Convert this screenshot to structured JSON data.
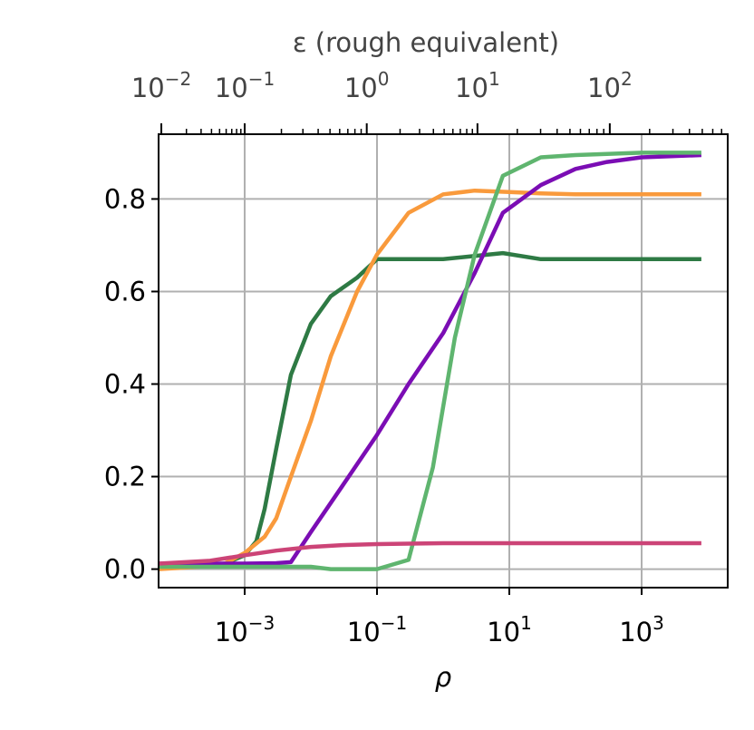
{
  "chart_data": {
    "type": "line",
    "xscale": "log",
    "xlabel": "ρ",
    "xlim": [
      5e-05,
      20000
    ],
    "ylim": [
      -0.04,
      0.94
    ],
    "grid": true,
    "x_ticks": [
      {
        "value": 0.001,
        "base": "10",
        "exp": "−3"
      },
      {
        "value": 0.1,
        "base": "10",
        "exp": "−1"
      },
      {
        "value": 10,
        "base": "10",
        "exp": "1"
      },
      {
        "value": 1000,
        "base": "10",
        "exp": "3"
      }
    ],
    "y_ticks": [
      {
        "value": 0.0,
        "label": "0.0"
      },
      {
        "value": 0.2,
        "label": "0.2"
      },
      {
        "value": 0.4,
        "label": "0.4"
      },
      {
        "value": 0.6,
        "label": "0.6"
      },
      {
        "value": 0.8,
        "label": "0.8"
      }
    ],
    "top_axis": {
      "label": "ε (rough equivalent)",
      "xscale": "log",
      "ticks": [
        {
          "base": "10",
          "exp": "−2",
          "rho": 5.5e-05
        },
        {
          "base": "10",
          "exp": "−1",
          "rho": 0.001
        },
        {
          "base": "10",
          "exp": "0",
          "rho": 0.07
        },
        {
          "base": "10",
          "exp": "1",
          "rho": 3.3
        },
        {
          "base": "10",
          "exp": "2",
          "rho": 330
        }
      ]
    },
    "series": [
      {
        "color": "#2e7a44",
        "x": [
          5e-05,
          0.0002,
          0.0005,
          0.001,
          0.0015,
          0.002,
          0.003,
          0.005,
          0.01,
          0.02,
          0.05,
          0.1,
          0.3,
          1,
          3,
          8,
          30,
          100,
          1000,
          8000
        ],
        "y": [
          0.005,
          0.007,
          0.012,
          0.03,
          0.06,
          0.13,
          0.26,
          0.42,
          0.53,
          0.59,
          0.63,
          0.67,
          0.67,
          0.67,
          0.677,
          0.683,
          0.67,
          0.67,
          0.67,
          0.67
        ]
      },
      {
        "color": "#f99a3c",
        "x": [
          5e-05,
          0.0002,
          0.0005,
          0.001,
          0.002,
          0.003,
          0.005,
          0.01,
          0.02,
          0.05,
          0.1,
          0.3,
          1,
          3,
          10,
          30,
          100,
          1000,
          8000
        ],
        "y": [
          0.0,
          0.005,
          0.012,
          0.035,
          0.07,
          0.11,
          0.2,
          0.32,
          0.46,
          0.6,
          0.68,
          0.77,
          0.81,
          0.818,
          0.815,
          0.812,
          0.81,
          0.81,
          0.81
        ]
      },
      {
        "color": "#7b0db4",
        "x": [
          5e-05,
          0.0002,
          0.0005,
          0.001,
          0.003,
          0.005,
          0.01,
          0.03,
          0.1,
          0.3,
          1,
          3,
          8,
          30,
          100,
          300,
          1000,
          8000
        ],
        "y": [
          0.012,
          0.012,
          0.012,
          0.012,
          0.013,
          0.015,
          0.08,
          0.18,
          0.29,
          0.4,
          0.51,
          0.64,
          0.77,
          0.83,
          0.865,
          0.88,
          0.89,
          0.895
        ]
      },
      {
        "color": "#5fb56f",
        "x": [
          5e-05,
          0.001,
          0.005,
          0.01,
          0.02,
          0.1,
          0.3,
          0.7,
          1.5,
          3,
          8,
          30,
          100,
          1000,
          8000
        ],
        "y": [
          0.005,
          0.005,
          0.005,
          0.005,
          0.0,
          0.0,
          0.02,
          0.22,
          0.5,
          0.68,
          0.85,
          0.89,
          0.895,
          0.9,
          0.9
        ]
      },
      {
        "color": "#cc4477",
        "x": [
          5e-05,
          0.0003,
          0.001,
          0.003,
          0.01,
          0.03,
          0.1,
          0.3,
          1,
          10,
          100,
          1000,
          8000
        ],
        "y": [
          0.012,
          0.018,
          0.03,
          0.04,
          0.048,
          0.052,
          0.054,
          0.055,
          0.056,
          0.056,
          0.056,
          0.056,
          0.056
        ]
      }
    ]
  }
}
